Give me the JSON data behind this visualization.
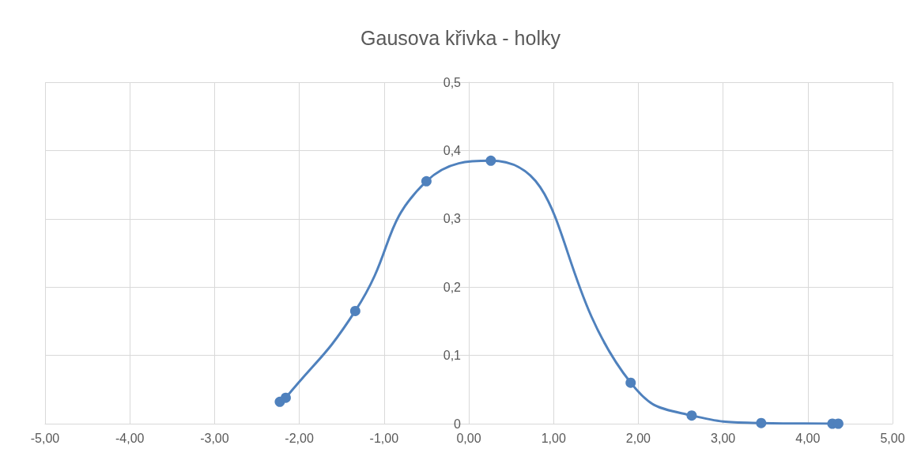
{
  "chart_data": {
    "type": "line",
    "title": "Gausova křivka - holky",
    "x": [
      -2.23,
      -2.16,
      -1.34,
      -0.5,
      0.26,
      1.91,
      2.63,
      3.45,
      4.29,
      4.36
    ],
    "series": [
      {
        "color": "#4f81bd",
        "values": [
          0.032,
          0.038,
          0.165,
          0.355,
          0.385,
          0.06,
          0.012,
          0.001,
          0,
          0
        ]
      }
    ],
    "xlim": [
      -5,
      5
    ],
    "xticks": [
      {
        "value": -5,
        "label": "-5,00"
      },
      {
        "value": -4,
        "label": "-4,00"
      },
      {
        "value": -3,
        "label": "-3,00"
      },
      {
        "value": -2,
        "label": "-2,00"
      },
      {
        "value": -1,
        "label": "-1,00"
      },
      {
        "value": 0,
        "label": "0,00"
      },
      {
        "value": 1,
        "label": "1,00"
      },
      {
        "value": 2,
        "label": "2,00"
      },
      {
        "value": 3,
        "label": "3,00"
      },
      {
        "value": 4,
        "label": "4,00"
      },
      {
        "value": 5,
        "label": "5,00"
      }
    ],
    "ylim": [
      0,
      0.5
    ],
    "yticks": [
      0,
      {
        "value": 0.1,
        "label": "0,1"
      },
      {
        "value": 0.2,
        "label": "0,2"
      },
      {
        "value": 0.3,
        "label": "0,3"
      },
      {
        "value": 0.4,
        "label": "0,4"
      },
      {
        "value": 0.5,
        "label": "0,5"
      }
    ],
    "grid": true,
    "marker": "circle",
    "line_style": "solid"
  }
}
